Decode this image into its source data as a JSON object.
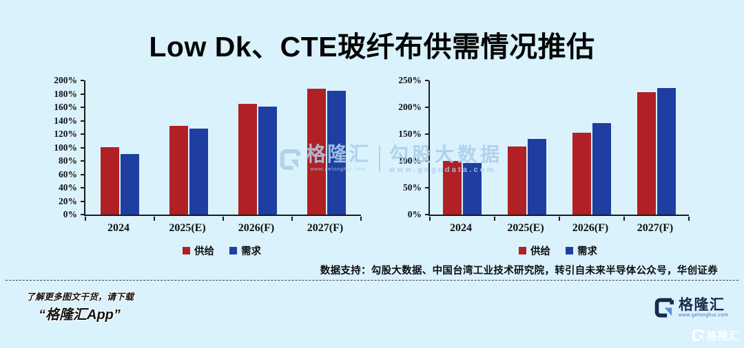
{
  "page": {
    "title": "Low Dk、CTE玻纤布供需情况推估",
    "source_note": "数据支持：勾股大数据、中国台湾工业技术研究院，转引自未来半导体公众号，华创证券",
    "footer_line1": "了解更多图文干货，请下载",
    "footer_line2": "“格隆汇App”"
  },
  "colors": {
    "background": "#daf2fc",
    "supply_red": "#b02025",
    "demand_blue": "#1e3ea1",
    "axis_black": "#1a1a1a",
    "watermark_blue": "#abcde9",
    "logo_navy": "#1b2a4a",
    "logo_accent_blue": "#5b8dd9",
    "logo_url_blue": "#3a66c0"
  },
  "chart_data": [
    {
      "type": "bar",
      "title": "",
      "categories": [
        "2024",
        "2025(E)",
        "2026(F)",
        "2027(F)"
      ],
      "series": [
        {
          "name": "供给",
          "color": "#b02025",
          "values": [
            100,
            132,
            165,
            188
          ]
        },
        {
          "name": "需求",
          "color": "#1e3ea1",
          "values": [
            90,
            128,
            161,
            185
          ]
        }
      ],
      "unit": "%",
      "ylim": [
        0,
        200
      ],
      "ytick_step": 20,
      "ytick_labels": [
        "0%",
        "20%",
        "40%",
        "60%",
        "80%",
        "100%",
        "120%",
        "140%",
        "160%",
        "180%",
        "200%"
      ],
      "grid": false,
      "legend_position": "bottom"
    },
    {
      "type": "bar",
      "title": "",
      "categories": [
        "2024",
        "2025(E)",
        "2026(F)",
        "2027(F)"
      ],
      "series": [
        {
          "name": "供给",
          "color": "#b02025",
          "values": [
            100,
            127,
            152,
            228
          ]
        },
        {
          "name": "需求",
          "color": "#1e3ea1",
          "values": [
            96,
            141,
            170,
            236
          ]
        }
      ],
      "unit": "%",
      "ylim": [
        0,
        250
      ],
      "ytick_step": 50,
      "ytick_labels": [
        "0%",
        "50%",
        "100%",
        "150%",
        "200%",
        "250%"
      ],
      "grid": false,
      "legend_position": "bottom"
    }
  ],
  "watermark_center": {
    "brand": "格隆汇",
    "brand_url": "www.gelonghui.com",
    "partner": "勾股大数据",
    "partner_url": "www.gogudata.com"
  },
  "logo": {
    "brand": "格隆汇",
    "url": "www.gelonghui.com"
  },
  "corner_watermark": {
    "brand": "格隆汇"
  }
}
